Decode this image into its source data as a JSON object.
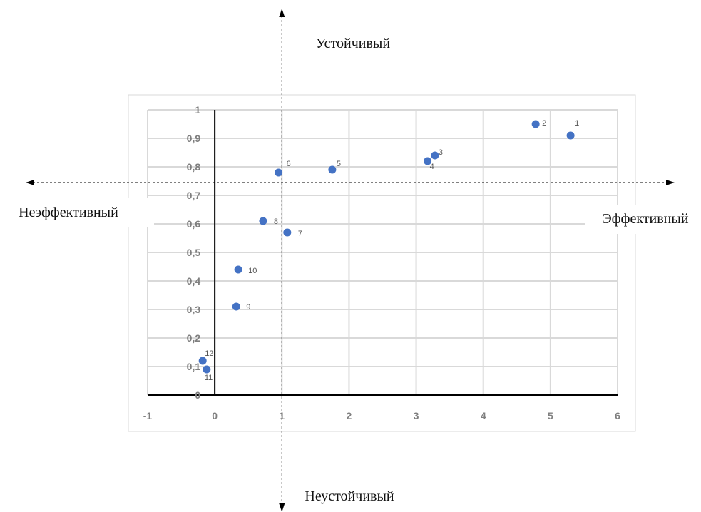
{
  "quadrant_labels": {
    "top": "Устойчивый",
    "bottom": "Неустойчивый",
    "left": "Неэффективный",
    "right": "Эффективный"
  },
  "colors": {
    "points": "#4472c4",
    "grid": "#d9d9d9",
    "axis": "#000000",
    "tick_text": "#7f7f7f",
    "guide": "#000000"
  },
  "chart_data": {
    "type": "scatter",
    "xlim": [
      -1,
      6
    ],
    "ylim": [
      0,
      1
    ],
    "x_ticks": [
      "-1",
      "0",
      "1",
      "2",
      "3",
      "4",
      "5",
      "6"
    ],
    "y_ticks": [
      "0",
      "0,1",
      "0,2",
      "0,3",
      "0,4",
      "0,5",
      "0,6",
      "0,7",
      "0,8",
      "0,9",
      "1"
    ],
    "grid": true,
    "points": [
      {
        "label": "1",
        "x": 5.3,
        "y": 0.91
      },
      {
        "label": "2",
        "x": 4.78,
        "y": 0.95
      },
      {
        "label": "3",
        "x": 3.28,
        "y": 0.84
      },
      {
        "label": "4",
        "x": 3.17,
        "y": 0.82
      },
      {
        "label": "5",
        "x": 1.75,
        "y": 0.79
      },
      {
        "label": "6",
        "x": 0.95,
        "y": 0.78
      },
      {
        "label": "7",
        "x": 1.08,
        "y": 0.57
      },
      {
        "label": "8",
        "x": 0.72,
        "y": 0.61
      },
      {
        "label": "9",
        "x": 0.32,
        "y": 0.31
      },
      {
        "label": "10",
        "x": 0.35,
        "y": 0.44
      },
      {
        "label": "11",
        "x": -0.12,
        "y": 0.09
      },
      {
        "label": "12",
        "x": -0.18,
        "y": 0.12
      }
    ],
    "guides": {
      "vertical_x": 1.0,
      "horizontal_y": 0.745
    }
  }
}
